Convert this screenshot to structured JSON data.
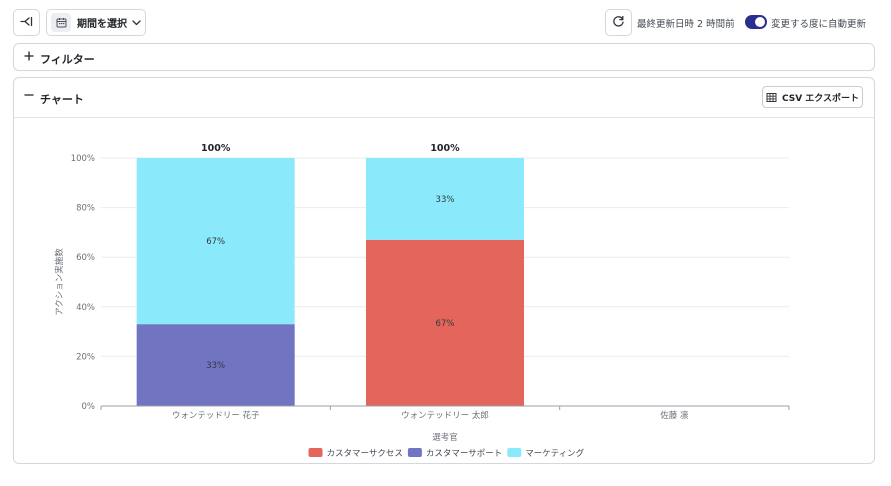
{
  "toolbar": {
    "period_label": "期間を選択",
    "last_updated": "最終更新日時 2 時間前",
    "auto_update_label": "変更する度に自動更新",
    "auto_update_on": true
  },
  "filter_panel": {
    "title": "フィルター",
    "icon": "plus-icon"
  },
  "chart_panel": {
    "title": "チャート",
    "icon": "minus-icon",
    "csv_label": "CSV エクスポート"
  },
  "colors": {
    "customer_success": "#E3655B",
    "customer_support": "#7174C1",
    "marketing": "#8AE9FA",
    "toggle": "#2A2F8F"
  },
  "chart_data": {
    "type": "bar",
    "stacked": true,
    "xlabel": "選考官",
    "ylabel": "アクション実施数",
    "ylim": [
      0,
      100
    ],
    "yticks": [
      "0%",
      "20%",
      "40%",
      "60%",
      "80%",
      "100%"
    ],
    "categories": [
      "ウォンテッドリー 花子",
      "ウォンテッドリー 太郎",
      "佐藤 凛"
    ],
    "totals": [
      "100%",
      "100%",
      null
    ],
    "series": [
      {
        "name": "カスタマーサクセス",
        "color": "#E3655B",
        "values": [
          0,
          67,
          0
        ],
        "labels": [
          null,
          "67%",
          null
        ]
      },
      {
        "name": "カスタマーサポート",
        "color": "#7174C1",
        "values": [
          33,
          0,
          0
        ],
        "labels": [
          "33%",
          null,
          null
        ]
      },
      {
        "name": "マーケティング",
        "color": "#8AE9FA",
        "values": [
          67,
          33,
          0
        ],
        "labels": [
          "67%",
          "33%",
          null
        ]
      }
    ],
    "grid": true,
    "legend": "bottom"
  }
}
